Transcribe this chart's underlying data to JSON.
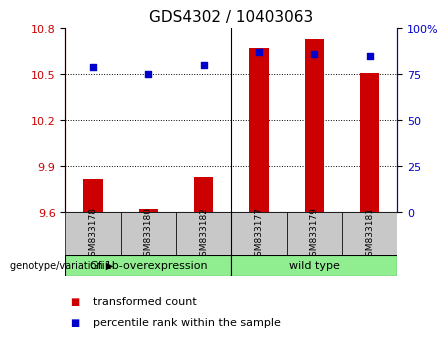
{
  "title": "GDS4302 / 10403063",
  "samples": [
    "GSM833178",
    "GSM833180",
    "GSM833182",
    "GSM833177",
    "GSM833179",
    "GSM833181"
  ],
  "groups": [
    "Gfi1b-overexpression",
    "Gfi1b-overexpression",
    "Gfi1b-overexpression",
    "wild type",
    "wild type",
    "wild type"
  ],
  "transformed_counts": [
    9.82,
    9.62,
    9.83,
    10.67,
    10.73,
    10.51
  ],
  "percentile_ranks": [
    79,
    75,
    80,
    87,
    86,
    85
  ],
  "ylim_left": [
    9.6,
    10.8
  ],
  "ylim_right": [
    0,
    100
  ],
  "yticks_left": [
    9.6,
    9.9,
    10.2,
    10.5,
    10.8
  ],
  "yticks_right": [
    0,
    25,
    50,
    75,
    100
  ],
  "bar_color": "#CC0000",
  "dot_color": "#0000CC",
  "bar_width": 0.35,
  "title_fontsize": 11,
  "tick_fontsize": 8,
  "legend_fontsize": 8,
  "sample_label_fontsize": 6.5,
  "group_label_fontsize": 8,
  "group1_color": "#90EE90",
  "group2_color": "#90EE90",
  "sample_box_color": "#C8C8C8"
}
